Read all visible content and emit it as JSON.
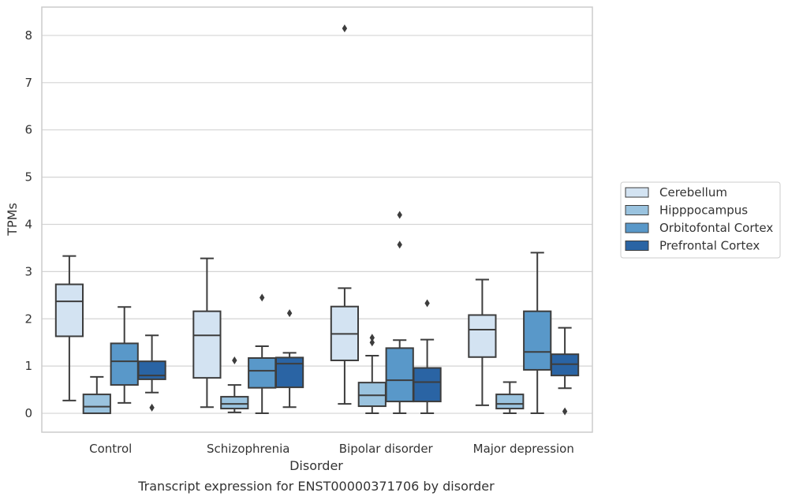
{
  "chart_data": {
    "type": "box",
    "title": "",
    "caption": "Transcript expression for ENST00000371706 by disorder",
    "xlabel": "Disorder",
    "ylabel": "TPMs",
    "ylim": [
      -0.4,
      8.6
    ],
    "yticks": [
      0,
      1,
      2,
      3,
      4,
      5,
      6,
      7,
      8
    ],
    "grid": "horizontal",
    "legend_position": "right",
    "categories": [
      "Control",
      "Schizophrenia",
      "Bipolar disorder",
      "Major depression"
    ],
    "series": [
      {
        "name": "Cerebellum",
        "color": "#d3e3f2",
        "boxes": [
          {
            "whislo": 0.27,
            "q1": 1.63,
            "med": 2.37,
            "q3": 2.73,
            "whishi": 3.33,
            "fliers": []
          },
          {
            "whislo": 0.13,
            "q1": 0.75,
            "med": 1.65,
            "q3": 2.16,
            "whishi": 3.28,
            "fliers": []
          },
          {
            "whislo": 0.2,
            "q1": 1.12,
            "med": 1.68,
            "q3": 2.26,
            "whishi": 2.65,
            "fliers": [
              8.15
            ]
          },
          {
            "whislo": 0.17,
            "q1": 1.19,
            "med": 1.77,
            "q3": 2.08,
            "whishi": 2.83,
            "fliers": []
          }
        ]
      },
      {
        "name": "Hipppocampus",
        "color": "#9ac3df",
        "boxes": [
          {
            "whislo": 0.0,
            "q1": 0.0,
            "med": 0.14,
            "q3": 0.4,
            "whishi": 0.77,
            "fliers": []
          },
          {
            "whislo": 0.02,
            "q1": 0.1,
            "med": 0.2,
            "q3": 0.35,
            "whishi": 0.6,
            "fliers": [
              1.12
            ]
          },
          {
            "whislo": 0.0,
            "q1": 0.15,
            "med": 0.38,
            "q3": 0.65,
            "whishi": 1.22,
            "fliers": [
              1.5,
              1.6
            ]
          },
          {
            "whislo": 0.0,
            "q1": 0.1,
            "med": 0.2,
            "q3": 0.4,
            "whishi": 0.66,
            "fliers": []
          }
        ]
      },
      {
        "name": "Orbitofontal Cortex",
        "color": "#5998c9",
        "boxes": [
          {
            "whislo": 0.22,
            "q1": 0.6,
            "med": 1.1,
            "q3": 1.48,
            "whishi": 2.25,
            "fliers": []
          },
          {
            "whislo": 0.0,
            "q1": 0.54,
            "med": 0.9,
            "q3": 1.17,
            "whishi": 1.42,
            "fliers": [
              2.45
            ]
          },
          {
            "whislo": 0.0,
            "q1": 0.25,
            "med": 0.7,
            "q3": 1.38,
            "whishi": 1.55,
            "fliers": [
              3.57,
              4.2
            ]
          },
          {
            "whislo": 0.0,
            "q1": 0.92,
            "med": 1.3,
            "q3": 2.16,
            "whishi": 3.4,
            "fliers": []
          }
        ]
      },
      {
        "name": "Prefrontal Cortex",
        "color": "#2a64a4",
        "boxes": [
          {
            "whislo": 0.44,
            "q1": 0.72,
            "med": 0.8,
            "q3": 1.1,
            "whishi": 1.65,
            "fliers": [
              0.12
            ]
          },
          {
            "whislo": 0.13,
            "q1": 0.55,
            "med": 1.05,
            "q3": 1.18,
            "whishi": 1.28,
            "fliers": [
              2.12
            ]
          },
          {
            "whislo": 0.0,
            "q1": 0.25,
            "med": 0.66,
            "q3": 0.96,
            "whishi": 1.56,
            "fliers": [
              2.33
            ]
          },
          {
            "whislo": 0.53,
            "q1": 0.8,
            "med": 1.04,
            "q3": 1.25,
            "whishi": 1.81,
            "fliers": [
              0.04
            ]
          }
        ]
      }
    ]
  }
}
